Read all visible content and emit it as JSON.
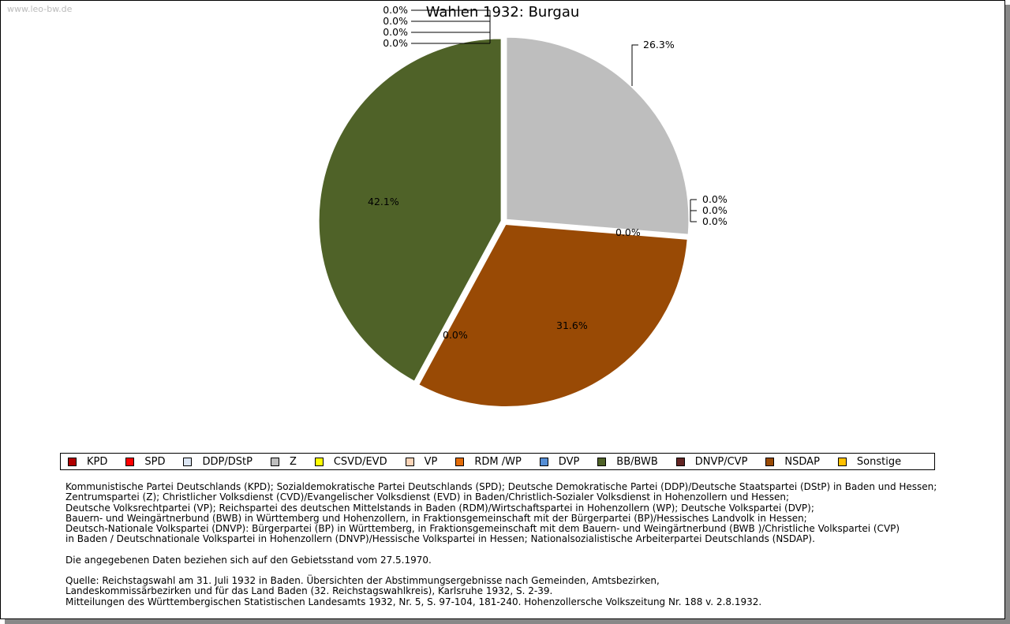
{
  "watermark": "www.leo-bw.de",
  "chart_data": {
    "type": "pie",
    "title": "Wahlen 1932: Burgau",
    "slices": [
      {
        "name": "Z",
        "value": 26.3,
        "label": "26.3%",
        "color": "#bebebe"
      },
      {
        "name": "NSDAP",
        "value": 31.6,
        "label": "31.6%",
        "color": "#994a05"
      },
      {
        "name": "BB/BWB",
        "value": 42.1,
        "label": "42.1%",
        "color": "#4f6228"
      }
    ],
    "zero_labels": [
      "0.0%",
      "0.0%",
      "0.0%",
      "0.0%",
      "0.0%",
      "0.0%",
      "0.0%",
      "0.0%",
      "0.0%"
    ],
    "legend": [
      {
        "name": "KPD",
        "color": "#b00000"
      },
      {
        "name": "SPD",
        "color": "#ff0000"
      },
      {
        "name": "DDP/DStP",
        "color": "#dce6f4"
      },
      {
        "name": "Z",
        "color": "#bebebe"
      },
      {
        "name": "CSVD/EVD",
        "color": "#ffff00"
      },
      {
        "name": "VP",
        "color": "#fcd5b8"
      },
      {
        "name": "RDM /WP",
        "color": "#e36c09"
      },
      {
        "name": "DVP",
        "color": "#558ed5"
      },
      {
        "name": "BB/BWB",
        "color": "#4f6228"
      },
      {
        "name": "DNVP/CVP",
        "color": "#632523"
      },
      {
        "name": "NSDAP",
        "color": "#994a05"
      },
      {
        "name": "Sonstige",
        "color": "#ffc000"
      }
    ],
    "legend_position": "bottom"
  },
  "notes": {
    "parties": [
      "Kommunistische Partei Deutschlands (KPD); Sozialdemokratische Partei Deutschlands (SPD); Deutsche Demokratische Partei (DDP)/Deutsche Staatspartei (DStP) in Baden und Hessen;",
      "Zentrumspartei (Z); Christlicher Volksdienst (CVD)/Evangelischer Volksdienst (EVD) in Baden/Christlich-Sozialer Volksdienst in Hohenzollern und Hessen;",
      "Deutsche Volksrechtpartei (VP); Reichspartei des deutschen Mittelstands in Baden (RDM)/Wirtschaftspartei in Hohenzollern (WP); Deutsche Volkspartei (DVP);",
      "Bauern- und Weingärtnerbund (BWB) in Württemberg und Hohenzollern, in Fraktionsgemeinschaft mit der Bürgerpartei (BP)/Hessisches Landvolk in Hessen;",
      "Deutsch-Nationale Volkspartei (DNVP): Bürgerpartei (BP) in Württemberg, in Fraktionsgemeinschaft mit dem Bauern- und Weingärtnerbund (BWB )/Christliche Volkspartei (CVP)",
      "in Baden / Deutschnationale Volkspartei in Hohenzollern (DNVP)/Hessische Volkspartei in Hessen; Nationalsozialistische Arbeiterpartei Deutschlands (NSDAP)."
    ],
    "territory": "Die angegebenen Daten beziehen sich auf den Gebietsstand vom 27.5.1970.",
    "source": [
      "Quelle: Reichstagswahl am 31. Juli 1932 in Baden. Übersichten der Abstimmungsergebnisse nach Gemeinden, Amtsbezirken,",
      "Landeskommissärbezirken und für das Land Baden (32. Reichstagswahlkreis), Karlsruhe 1932, S. 2-39.",
      "Mitteilungen des Württembergischen Statistischen Landesamts 1932, Nr. 5, S. 97-104, 181-240. Hohenzollersche Volkszeitung Nr. 188 v. 2.8.1932."
    ]
  }
}
